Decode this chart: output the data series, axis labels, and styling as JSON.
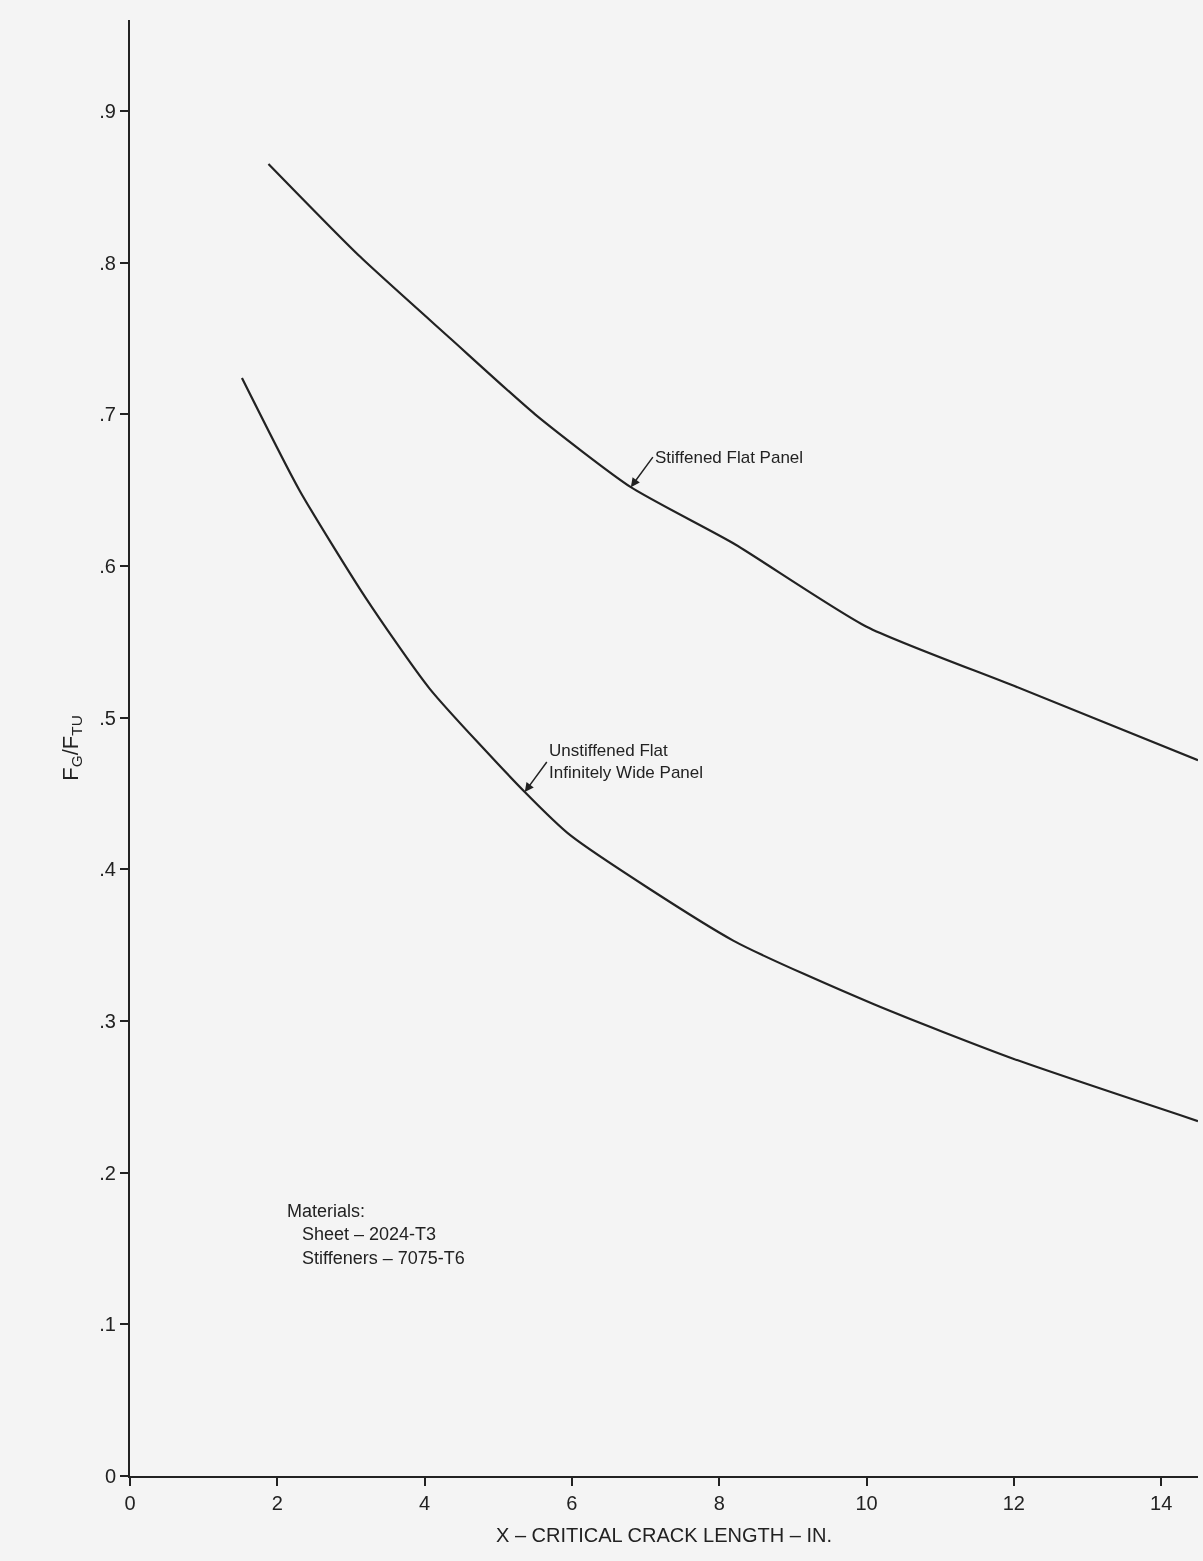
{
  "chart_data": {
    "type": "line",
    "xlabel": "X – CRITICAL CRACK LENGTH – IN.",
    "ylabel": "F$_{G}$/F$_{TU}$",
    "series": [
      {
        "name": "Stiffened Flat Panel",
        "color": "#222222",
        "x": [
          1.88,
          3.1,
          4.35,
          5.5,
          6.8,
          8.19,
          10.0,
          12.0,
          14.5
        ],
        "values": [
          0.865,
          0.805,
          0.75,
          0.7,
          0.652,
          0.615,
          0.56,
          0.521,
          0.472
        ]
      },
      {
        "name": "Unstiffened Flat\nInfinitely Wide Panel",
        "color": "#222222",
        "x": [
          1.52,
          2.3,
          3.2,
          4.07,
          5.36,
          5.99,
          8.19,
          10.1,
          12.0,
          14.5
        ],
        "values": [
          0.724,
          0.65,
          0.579,
          0.519,
          0.451,
          0.422,
          0.353,
          0.311,
          0.275,
          0.234
        ]
      }
    ],
    "annotations": [
      "Materials:\n   Sheet – 2024-T3\n   Stiffeners – 7075-T6"
    ],
    "xlim": [
      0,
      14.5
    ],
    "ylim": [
      0,
      0.96
    ],
    "xticks": [
      0,
      2,
      4,
      6,
      8,
      10,
      12,
      14
    ],
    "yticks": [
      0,
      {
        "value": 0.1,
        "label": ".1"
      },
      {
        "value": 0.2,
        "label": ".2"
      },
      {
        "value": 0.3,
        "label": ".3"
      },
      {
        "value": 0.4,
        "label": ".4"
      },
      {
        "value": 0.5,
        "label": ".5"
      },
      {
        "value": 0.6,
        "label": ".6"
      },
      {
        "value": 0.7,
        "label": ".7"
      },
      {
        "value": 0.8,
        "label": ".8"
      },
      {
        "value": 0.9,
        "label": ".9"
      }
    ],
    "grid": false,
    "legend": false,
    "marker": "none",
    "line_style": "solid"
  }
}
